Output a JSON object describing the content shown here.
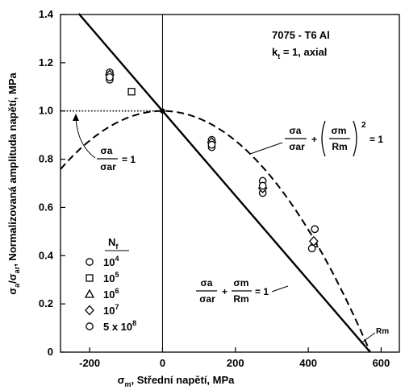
{
  "chart_data": {
    "type": "scatter",
    "title": "7075 - T6 Al",
    "subtitle_base": "k",
    "subtitle_sub": "t",
    "subtitle_rest": " = 1, axial",
    "xlabel_sym": "σ",
    "xlabel_sub": "m",
    "xlabel_text": ", Střední napětí, MPa",
    "ylabel_sym1": "σ",
    "ylabel_sub1": "a",
    "ylabel_sym2": "/σ",
    "ylabel_sub2": "ar",
    "ylabel_text": ", Normalizovaná amplituda napětí, MPa",
    "xlim": [
      -280,
      650
    ],
    "ylim": [
      0,
      1.4
    ],
    "xticks": [
      -200,
      0,
      200,
      400,
      600
    ],
    "xtick_labels": [
      "-200",
      "0",
      "200",
      "400",
      "600"
    ],
    "yticks": [
      0,
      0.2,
      0.4,
      0.6,
      0.8,
      1.0,
      1.2,
      1.4
    ],
    "ytick_labels": [
      "0",
      "0.2",
      "0.4",
      "0.6",
      "0.8",
      "1.0",
      "1.2",
      "1.4"
    ],
    "grid": false,
    "Rm": 570,
    "rm_label": "Rm",
    "vertical_line_x": 0,
    "horizontal_dotted_y": 1.0,
    "curves": [
      {
        "label": "Goodman",
        "style": "solid",
        "x": [
          -230,
          570
        ],
        "y": [
          1.4035,
          0
        ]
      },
      {
        "label": "Gerber",
        "style": "dashed",
        "equation": "y = 1 - (x/570)^2",
        "x_range": [
          -280,
          570
        ]
      }
    ],
    "annotation_left": {
      "num": "σa",
      "den": "σar",
      "rhs": "= 1"
    },
    "annotation_gerber": {
      "num1": "σa",
      "den1": "σar",
      "plus": "+",
      "num2": "σm",
      "den2": "Rm",
      "power": "2",
      "rhs": "= 1"
    },
    "annotation_goodman": {
      "num1": "σa",
      "den1": "σar",
      "plus": "+",
      "num2": "σm",
      "den2": "Rm",
      "rhs": "= 1"
    },
    "legend": {
      "placement": "left-center",
      "title_base": "N",
      "title_sub": "f",
      "entries": [
        {
          "marker": "circle",
          "base": "10",
          "sup": "4"
        },
        {
          "marker": "square",
          "base": "10",
          "sup": "5"
        },
        {
          "marker": "triangle",
          "base": "10",
          "sup": "6"
        },
        {
          "marker": "diamond",
          "base": "10",
          "sup": "7"
        },
        {
          "marker": "circle",
          "base": "5 x 10",
          "sup": "8"
        }
      ]
    },
    "series": [
      {
        "marker": "circle",
        "x": [
          -145,
          -145,
          135,
          135,
          275,
          275,
          418
        ],
        "y": [
          1.16,
          1.13,
          0.88,
          0.85,
          0.71,
          0.66,
          0.51
        ]
      },
      {
        "marker": "square",
        "x": [
          -85
        ],
        "y": [
          1.08
        ]
      },
      {
        "marker": "triangle",
        "x": [
          415
        ],
        "y": [
          0.45
        ]
      },
      {
        "marker": "diamond",
        "x": [
          -145,
          135,
          275,
          415
        ],
        "y": [
          1.15,
          0.87,
          0.68,
          0.46
        ]
      },
      {
        "marker": "circle",
        "x": [
          -145,
          135,
          275,
          410
        ],
        "y": [
          1.14,
          0.86,
          0.69,
          0.43
        ]
      }
    ]
  }
}
